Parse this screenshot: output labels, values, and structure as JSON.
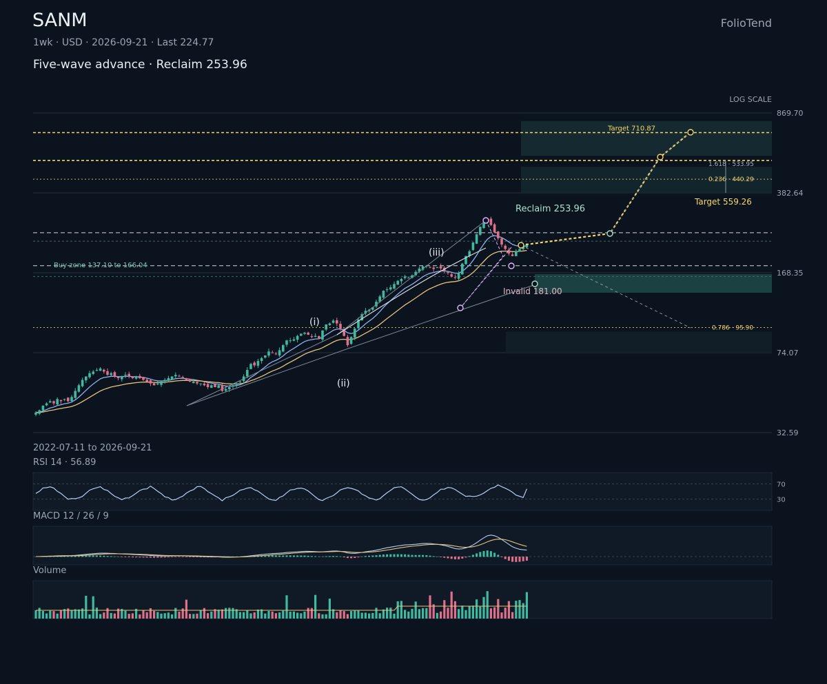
{
  "header": {
    "ticker": "SANM",
    "subtitle": "1wk · USD · 2026-09-21 · Last 224.77",
    "headline": "Five-wave advance · Reclaim 253.96",
    "brand": "FolioTend"
  },
  "scale_note": "LOG SCALE",
  "date_range": "2022-07-11 to 2026-09-21",
  "colors": {
    "background": "#0b131e",
    "up": "#3fb9a0",
    "down": "#e0708a",
    "ema_fast": "#8fb0ec",
    "ema_slow": "#e8c27a",
    "target": "#f5d66b",
    "zone": "#1f4a4a",
    "wave": "#e6e9ef"
  },
  "chart_data": {
    "type": "candlestick",
    "interval": "1wk",
    "currency": "USD",
    "y_scale": "log",
    "y_ticks": [
      "869.70",
      "382.64",
      "168.35",
      "74.07",
      "32.59"
    ],
    "start_date": "2022-07-11",
    "end_date": "2026-09-21",
    "last": 224.77,
    "closes": [
      40,
      41,
      43,
      44,
      45,
      44,
      46,
      45,
      46,
      45,
      47,
      50,
      53,
      56,
      58,
      60,
      61,
      62,
      63,
      61,
      59,
      60,
      58,
      57,
      58,
      59,
      58,
      57,
      58,
      57,
      56,
      55,
      54,
      53,
      54,
      55,
      56,
      57,
      58,
      59,
      58,
      57,
      56,
      55,
      55,
      54,
      54,
      53,
      52,
      53,
      52,
      53,
      50,
      51,
      52,
      53,
      54,
      55,
      58,
      62,
      66,
      65,
      68,
      70,
      72,
      75,
      74,
      73,
      76,
      80,
      84,
      84,
      85,
      88,
      90,
      91,
      89,
      87,
      88,
      86,
      93,
      99,
      100,
      103,
      100,
      95,
      88,
      80,
      87,
      95,
      104,
      110,
      114,
      115,
      118,
      125,
      132,
      140,
      142,
      145,
      150,
      155,
      158,
      162,
      160,
      164,
      170,
      176,
      180,
      181,
      178,
      175,
      178,
      176,
      172,
      168,
      162,
      160,
      168,
      185,
      200,
      210,
      230,
      250,
      270,
      280,
      290,
      275,
      255,
      240,
      225,
      215,
      205,
      200,
      210,
      215,
      222,
      224.77
    ],
    "price_lines": [
      {
        "label": "Target 710.87",
        "value": 710.87,
        "style": "target"
      },
      {
        "label": "1.618 · 533.95",
        "value": 533.95,
        "style": "fib"
      },
      {
        "label": "0.236 · 440.29",
        "value": 440.29,
        "style": "fib"
      },
      {
        "label": "Target 559.26",
        "value": 559.26,
        "style": "target"
      },
      {
        "label": "Reclaim 253.96",
        "value": 253.96,
        "style": "level"
      },
      {
        "label": "Invalid 181.00",
        "value": 181.0,
        "style": "level"
      },
      {
        "label": "0.786 · 95.90",
        "value": 95.9,
        "style": "fib"
      }
    ],
    "buy_zone": {
      "label": "Buy zone 137.10 to 166.04",
      "low": 137.1,
      "high": 166.04
    },
    "wave_labels": [
      "(i)",
      "(ii)",
      "(iii)"
    ],
    "rsi": {
      "label": "RSI 14 · 56.89",
      "value": 56.89,
      "levels": [
        "70",
        "30"
      ]
    },
    "macd": {
      "label": "MACD 12 / 26 / 9"
    },
    "volume": {
      "label": "Volume"
    }
  }
}
